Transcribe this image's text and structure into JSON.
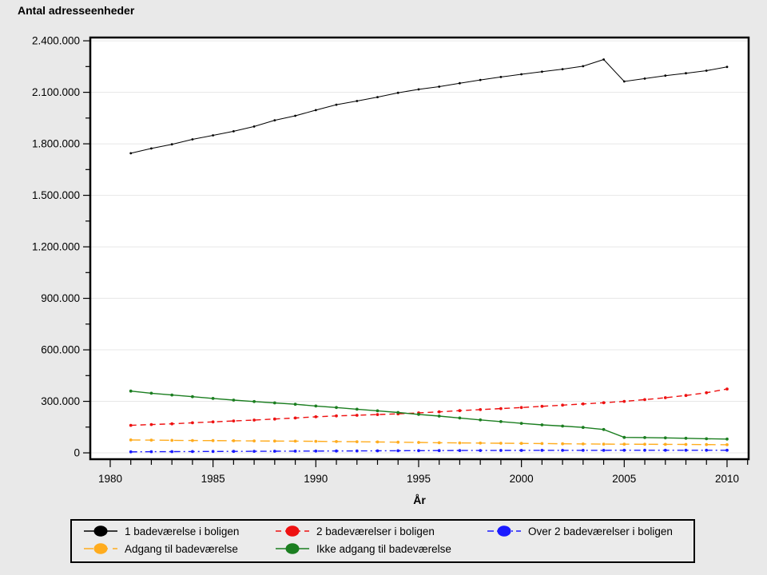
{
  "title": "Antal adresseenheder",
  "xlabel": "År",
  "chart_data": {
    "type": "line",
    "x": [
      1981,
      1982,
      1983,
      1984,
      1985,
      1986,
      1987,
      1988,
      1989,
      1990,
      1991,
      1992,
      1993,
      1994,
      1995,
      1996,
      1997,
      1998,
      1999,
      2000,
      2001,
      2002,
      2003,
      2004,
      2005,
      2006,
      2007,
      2008,
      2009,
      2010
    ],
    "series": [
      {
        "name": "1 badeværelse i boligen",
        "color": "#000000",
        "dash": "",
        "line_width": 1,
        "values": [
          1745000,
          1773000,
          1797000,
          1826000,
          1849000,
          1873000,
          1901000,
          1937000,
          1963000,
          1996000,
          2028000,
          2049000,
          2072000,
          2097000,
          2117000,
          2133000,
          2153000,
          2172000,
          2189000,
          2205000,
          2220000,
          2235000,
          2252000,
          2291000,
          2163000,
          2180000,
          2197000,
          2211000,
          2226000,
          2248000
        ]
      },
      {
        "name": "2 badeværelser i boligen",
        "color": "#ee1111",
        "dash": "7 5",
        "line_width": 1.4,
        "values": [
          160000,
          165000,
          169000,
          175000,
          180000,
          186000,
          191000,
          197000,
          203000,
          210000,
          215000,
          219000,
          223000,
          227000,
          233000,
          239000,
          246000,
          252000,
          258000,
          264000,
          271000,
          278000,
          285000,
          292000,
          300000,
          310000,
          321000,
          334000,
          350000,
          372000
        ]
      },
      {
        "name": "Over 2 badeværelser i boligen",
        "color": "#1a1aff",
        "dash": "8 4 2 4",
        "line_width": 1.4,
        "values": [
          6000,
          6500,
          7000,
          7500,
          8000,
          8500,
          9000,
          9500,
          10000,
          10500,
          11000,
          11500,
          12000,
          12500,
          13000,
          13200,
          13500,
          13700,
          14000,
          14200,
          14400,
          14500,
          14700,
          14800,
          15000,
          15000,
          15100,
          15200,
          15200,
          15300
        ]
      },
      {
        "name": "Adgang til badeværelse",
        "color": "#ffac1e",
        "dash": "12 6",
        "line_width": 1.4,
        "values": [
          75000,
          74000,
          73000,
          72000,
          71500,
          70500,
          69500,
          68500,
          68000,
          67000,
          66000,
          65000,
          63500,
          62000,
          60500,
          59000,
          58000,
          57000,
          56000,
          55000,
          54000,
          53000,
          52000,
          51000,
          50500,
          50000,
          49500,
          49000,
          48000,
          47000
        ]
      },
      {
        "name": "Ikke adgang til badeværelse",
        "color": "#1b7e20",
        "dash": "",
        "line_width": 1.4,
        "values": [
          360000,
          347000,
          337000,
          327000,
          317000,
          307000,
          299000,
          291000,
          283000,
          273000,
          264000,
          254000,
          245000,
          235000,
          224000,
          214000,
          203000,
          192000,
          182000,
          172000,
          163000,
          156000,
          148000,
          136000,
          90000,
          89000,
          87000,
          85000,
          82000,
          80000
        ]
      }
    ],
    "xlim": [
      1979.03,
      2011.05
    ],
    "ylim": [
      -37000,
      2419000
    ],
    "x_major_ticks": [
      1980,
      1985,
      1990,
      1995,
      2000,
      2005,
      2010
    ],
    "x_tick_labels": [
      "1980",
      "1985",
      "1990",
      "1995",
      "2000",
      "2005",
      "2010"
    ],
    "x_minor_from": 1980,
    "x_minor_to": 2011,
    "x_minor_step": 1,
    "y_major_ticks": [
      0,
      300000,
      600000,
      900000,
      1200000,
      1500000,
      1800000,
      2100000,
      2400000
    ],
    "y_tick_labels": [
      "0",
      "300.000",
      "600.000",
      "900.000",
      "1.200.000",
      "1.500.000",
      "1.800.000",
      "2.100.000",
      "2.400.000"
    ],
    "y_minor_step": 150000,
    "title": "Antal adresseenheder",
    "xlabel": "År",
    "grid": "horizontal-major-only",
    "legend_position": "bottom",
    "colors": {
      "page_background": "#e9e9e9",
      "plot_background": "#ffffff",
      "gridline": "#e7e7e7",
      "axis": "#000000",
      "legend_background": "#ebebeb"
    }
  }
}
